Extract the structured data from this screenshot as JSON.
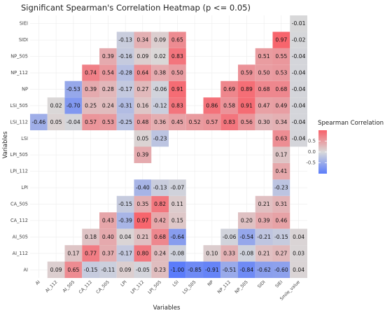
{
  "chart_data": {
    "type": "heatmap",
    "title": "Significant Spearman's Correlation Heatmap (p <= 0.05)",
    "xlabel": "Variables",
    "ylabel": "Variables",
    "x_categories": [
      "AI",
      "AI_112",
      "AI_505",
      "CA_112",
      "CA_505",
      "LPI",
      "LPI_112",
      "LPI_505",
      "LSI",
      "LSI_505",
      "NP",
      "NP_112",
      "NP_505",
      "SIDI",
      "SIEI",
      "Smile_value"
    ],
    "y_categories": [
      "AI",
      "AI_112",
      "AI_505",
      "CA_112",
      "CA_505",
      "LPI",
      "LPI_112",
      "LPI_505",
      "LSI",
      "LSI_112",
      "LSI_505",
      "NP",
      "NP_112",
      "NP_505",
      "SIDI",
      "SIEI"
    ],
    "cells": [
      {
        "y": "AI",
        "x": "AI_112",
        "value": 0.09
      },
      {
        "y": "AI",
        "x": "AI_505",
        "value": 0.65
      },
      {
        "y": "AI",
        "x": "CA_112",
        "value": -0.15
      },
      {
        "y": "AI",
        "x": "CA_505",
        "value": -0.11
      },
      {
        "y": "AI",
        "x": "LPI",
        "value": 0.09
      },
      {
        "y": "AI",
        "x": "LPI_112",
        "value": -0.05
      },
      {
        "y": "AI",
        "x": "LPI_505",
        "value": 0.23
      },
      {
        "y": "AI",
        "x": "LSI",
        "value": -1.0,
        "label": "-1.00"
      },
      {
        "y": "AI",
        "x": "LSI_505",
        "value": -0.85
      },
      {
        "y": "AI",
        "x": "NP",
        "value": -0.91
      },
      {
        "y": "AI",
        "x": "NP_112",
        "value": -0.51
      },
      {
        "y": "AI",
        "x": "NP_505",
        "value": -0.84
      },
      {
        "y": "AI",
        "x": "SIDI",
        "value": -0.62
      },
      {
        "y": "AI",
        "x": "SIEI",
        "value": -0.6,
        "label": "-0.60"
      },
      {
        "y": "AI",
        "x": "Smile_value",
        "value": 0.04
      },
      {
        "y": "AI_112",
        "x": "AI_505",
        "value": 0.17
      },
      {
        "y": "AI_112",
        "x": "CA_112",
        "value": 0.77
      },
      {
        "y": "AI_112",
        "x": "CA_505",
        "value": 0.37
      },
      {
        "y": "AI_112",
        "x": "LPI",
        "value": -0.17
      },
      {
        "y": "AI_112",
        "x": "LPI_112",
        "value": 0.8,
        "label": "0.80"
      },
      {
        "y": "AI_112",
        "x": "LPI_505",
        "value": 0.24
      },
      {
        "y": "AI_112",
        "x": "LSI",
        "value": -0.08
      },
      {
        "y": "AI_112",
        "x": "NP",
        "value": 0.1,
        "label": "0.10"
      },
      {
        "y": "AI_112",
        "x": "NP_112",
        "value": 0.33
      },
      {
        "y": "AI_112",
        "x": "NP_505",
        "value": -0.08
      },
      {
        "y": "AI_112",
        "x": "SIDI",
        "value": 0.21
      },
      {
        "y": "AI_112",
        "x": "SIEI",
        "value": 0.27
      },
      {
        "y": "AI_112",
        "x": "Smile_value",
        "value": 0.03
      },
      {
        "y": "AI_505",
        "x": "CA_112",
        "value": 0.18
      },
      {
        "y": "AI_505",
        "x": "CA_505",
        "value": 0.4,
        "label": "0.40"
      },
      {
        "y": "AI_505",
        "x": "LPI",
        "value": 0.04
      },
      {
        "y": "AI_505",
        "x": "LPI_112",
        "value": 0.21
      },
      {
        "y": "AI_505",
        "x": "LPI_505",
        "value": 0.68
      },
      {
        "y": "AI_505",
        "x": "LSI",
        "value": -0.64
      },
      {
        "y": "AI_505",
        "x": "NP_112",
        "value": -0.06
      },
      {
        "y": "AI_505",
        "x": "NP_505",
        "value": -0.54
      },
      {
        "y": "AI_505",
        "x": "SIDI",
        "value": -0.21
      },
      {
        "y": "AI_505",
        "x": "SIEI",
        "value": -0.15
      },
      {
        "y": "AI_505",
        "x": "Smile_value",
        "value": 0.04
      },
      {
        "y": "CA_112",
        "x": "CA_505",
        "value": 0.43
      },
      {
        "y": "CA_112",
        "x": "LPI",
        "value": -0.39
      },
      {
        "y": "CA_112",
        "x": "LPI_112",
        "value": 0.97
      },
      {
        "y": "CA_112",
        "x": "LPI_505",
        "value": 0.42
      },
      {
        "y": "CA_112",
        "x": "LSI",
        "value": 0.15
      },
      {
        "y": "CA_112",
        "x": "NP_505",
        "value": 0.2,
        "label": "0.20"
      },
      {
        "y": "CA_112",
        "x": "SIDI",
        "value": 0.39
      },
      {
        "y": "CA_112",
        "x": "SIEI",
        "value": 0.46
      },
      {
        "y": "CA_505",
        "x": "LPI",
        "value": -0.15
      },
      {
        "y": "CA_505",
        "x": "LPI_112",
        "value": 0.35
      },
      {
        "y": "CA_505",
        "x": "LPI_505",
        "value": 0.82
      },
      {
        "y": "CA_505",
        "x": "LSI",
        "value": 0.11
      },
      {
        "y": "CA_505",
        "x": "SIDI",
        "value": 0.21
      },
      {
        "y": "CA_505",
        "x": "SIEI",
        "value": 0.31
      },
      {
        "y": "LPI",
        "x": "LPI_112",
        "value": -0.4,
        "label": "-0.40"
      },
      {
        "y": "LPI",
        "x": "LPI_505",
        "value": -0.13
      },
      {
        "y": "LPI",
        "x": "LSI",
        "value": -0.07
      },
      {
        "y": "LPI",
        "x": "SIEI",
        "value": -0.23
      },
      {
        "y": "LPI_112",
        "x": "SIEI",
        "value": 0.41
      },
      {
        "y": "LPI_505",
        "x": "LPI_112",
        "value": 0.39
      },
      {
        "y": "LPI_505",
        "x": "SIEI",
        "value": 0.17
      },
      {
        "y": "LSI",
        "x": "LPI_112",
        "value": 0.05
      },
      {
        "y": "LSI",
        "x": "LPI_505",
        "value": -0.23
      },
      {
        "y": "LSI",
        "x": "SIEI",
        "value": 0.63
      },
      {
        "y": "LSI",
        "x": "Smile_value",
        "value": -0.04
      },
      {
        "y": "LSI_112",
        "x": "AI",
        "value": -0.46
      },
      {
        "y": "LSI_112",
        "x": "AI_112",
        "value": 0.05
      },
      {
        "y": "LSI_112",
        "x": "AI_505",
        "value": -0.04
      },
      {
        "y": "LSI_112",
        "x": "CA_112",
        "value": 0.57
      },
      {
        "y": "LSI_112",
        "x": "CA_505",
        "value": 0.53
      },
      {
        "y": "LSI_112",
        "x": "LPI",
        "value": -0.25
      },
      {
        "y": "LSI_112",
        "x": "LPI_112",
        "value": 0.48
      },
      {
        "y": "LSI_112",
        "x": "LPI_505",
        "value": 0.36
      },
      {
        "y": "LSI_112",
        "x": "LSI",
        "value": 0.45
      },
      {
        "y": "LSI_112",
        "x": "LSI_505",
        "value": 0.52
      },
      {
        "y": "LSI_112",
        "x": "NP",
        "value": 0.57
      },
      {
        "y": "LSI_112",
        "x": "NP_112",
        "value": 0.83
      },
      {
        "y": "LSI_112",
        "x": "NP_505",
        "value": 0.56
      },
      {
        "y": "LSI_112",
        "x": "SIDI",
        "value": 0.3,
        "label": "0.30"
      },
      {
        "y": "LSI_112",
        "x": "SIEI",
        "value": 0.34
      },
      {
        "y": "LSI_112",
        "x": "Smile_value",
        "value": -0.04
      },
      {
        "y": "LSI_505",
        "x": "AI_112",
        "value": 0.02
      },
      {
        "y": "LSI_505",
        "x": "AI_505",
        "value": -0.7,
        "label": "-0.70"
      },
      {
        "y": "LSI_505",
        "x": "CA_112",
        "value": 0.25
      },
      {
        "y": "LSI_505",
        "x": "CA_505",
        "value": 0.24
      },
      {
        "y": "LSI_505",
        "x": "LPI",
        "value": -0.31
      },
      {
        "y": "LSI_505",
        "x": "LPI_112",
        "value": 0.16
      },
      {
        "y": "LSI_505",
        "x": "LPI_505",
        "value": -0.12
      },
      {
        "y": "LSI_505",
        "x": "LSI",
        "value": 0.83
      },
      {
        "y": "LSI_505",
        "x": "NP",
        "value": 0.86
      },
      {
        "y": "LSI_505",
        "x": "NP_112",
        "value": 0.58
      },
      {
        "y": "LSI_505",
        "x": "NP_505",
        "value": 0.91
      },
      {
        "y": "LSI_505",
        "x": "SIDI",
        "value": 0.47
      },
      {
        "y": "LSI_505",
        "x": "SIEI",
        "value": 0.49
      },
      {
        "y": "LSI_505",
        "x": "Smile_value",
        "value": -0.04
      },
      {
        "y": "NP",
        "x": "AI_505",
        "value": -0.53
      },
      {
        "y": "NP",
        "x": "CA_112",
        "value": 0.39
      },
      {
        "y": "NP",
        "x": "CA_505",
        "value": 0.28
      },
      {
        "y": "NP",
        "x": "LPI",
        "value": -0.17
      },
      {
        "y": "NP",
        "x": "LPI_112",
        "value": 0.27
      },
      {
        "y": "NP",
        "x": "LPI_505",
        "value": -0.06
      },
      {
        "y": "NP",
        "x": "LSI",
        "value": 0.91
      },
      {
        "y": "NP",
        "x": "NP_112",
        "value": 0.69
      },
      {
        "y": "NP",
        "x": "NP_505",
        "value": 0.89
      },
      {
        "y": "NP",
        "x": "SIDI",
        "value": 0.68
      },
      {
        "y": "NP",
        "x": "SIEI",
        "value": 0.68
      },
      {
        "y": "NP",
        "x": "Smile_value",
        "value": -0.04
      },
      {
        "y": "NP_112",
        "x": "CA_112",
        "value": 0.74
      },
      {
        "y": "NP_112",
        "x": "CA_505",
        "value": 0.54
      },
      {
        "y": "NP_112",
        "x": "LPI",
        "value": -0.28
      },
      {
        "y": "NP_112",
        "x": "LPI_112",
        "value": 0.64
      },
      {
        "y": "NP_112",
        "x": "LPI_505",
        "value": 0.38
      },
      {
        "y": "NP_112",
        "x": "LSI",
        "value": 0.5,
        "label": "0.50"
      },
      {
        "y": "NP_112",
        "x": "NP_505",
        "value": 0.59
      },
      {
        "y": "NP_112",
        "x": "SIDI",
        "value": 0.5,
        "label": "0.50"
      },
      {
        "y": "NP_112",
        "x": "SIEI",
        "value": 0.53
      },
      {
        "y": "NP_112",
        "x": "Smile_value",
        "value": -0.04
      },
      {
        "y": "NP_505",
        "x": "CA_505",
        "value": 0.39
      },
      {
        "y": "NP_505",
        "x": "LPI",
        "value": -0.16
      },
      {
        "y": "NP_505",
        "x": "LPI_112",
        "value": 0.09
      },
      {
        "y": "NP_505",
        "x": "LPI_505",
        "value": 0.02
      },
      {
        "y": "NP_505",
        "x": "LSI",
        "value": 0.83
      },
      {
        "y": "NP_505",
        "x": "SIDI",
        "value": 0.51
      },
      {
        "y": "NP_505",
        "x": "SIEI",
        "value": 0.55
      },
      {
        "y": "NP_505",
        "x": "Smile_value",
        "value": -0.04
      },
      {
        "y": "SIDI",
        "x": "LPI",
        "value": -0.13
      },
      {
        "y": "SIDI",
        "x": "LPI_112",
        "value": 0.34
      },
      {
        "y": "SIDI",
        "x": "LPI_505",
        "value": 0.09
      },
      {
        "y": "SIDI",
        "x": "LSI",
        "value": 0.65
      },
      {
        "y": "SIDI",
        "x": "SIEI",
        "value": 0.97
      },
      {
        "y": "SIDI",
        "x": "Smile_value",
        "value": -0.02
      },
      {
        "y": "SIEI",
        "x": "Smile_value",
        "value": -0.01
      }
    ],
    "legend": {
      "title": "Spearman Correlation",
      "ticks": [
        "0.5",
        "0.0",
        "-0.5"
      ],
      "range": [
        -1,
        1
      ],
      "low_color": "#5b7cfa",
      "mid_color": "#d9d9d9",
      "high_color": "#f8616a"
    },
    "grid": true
  }
}
